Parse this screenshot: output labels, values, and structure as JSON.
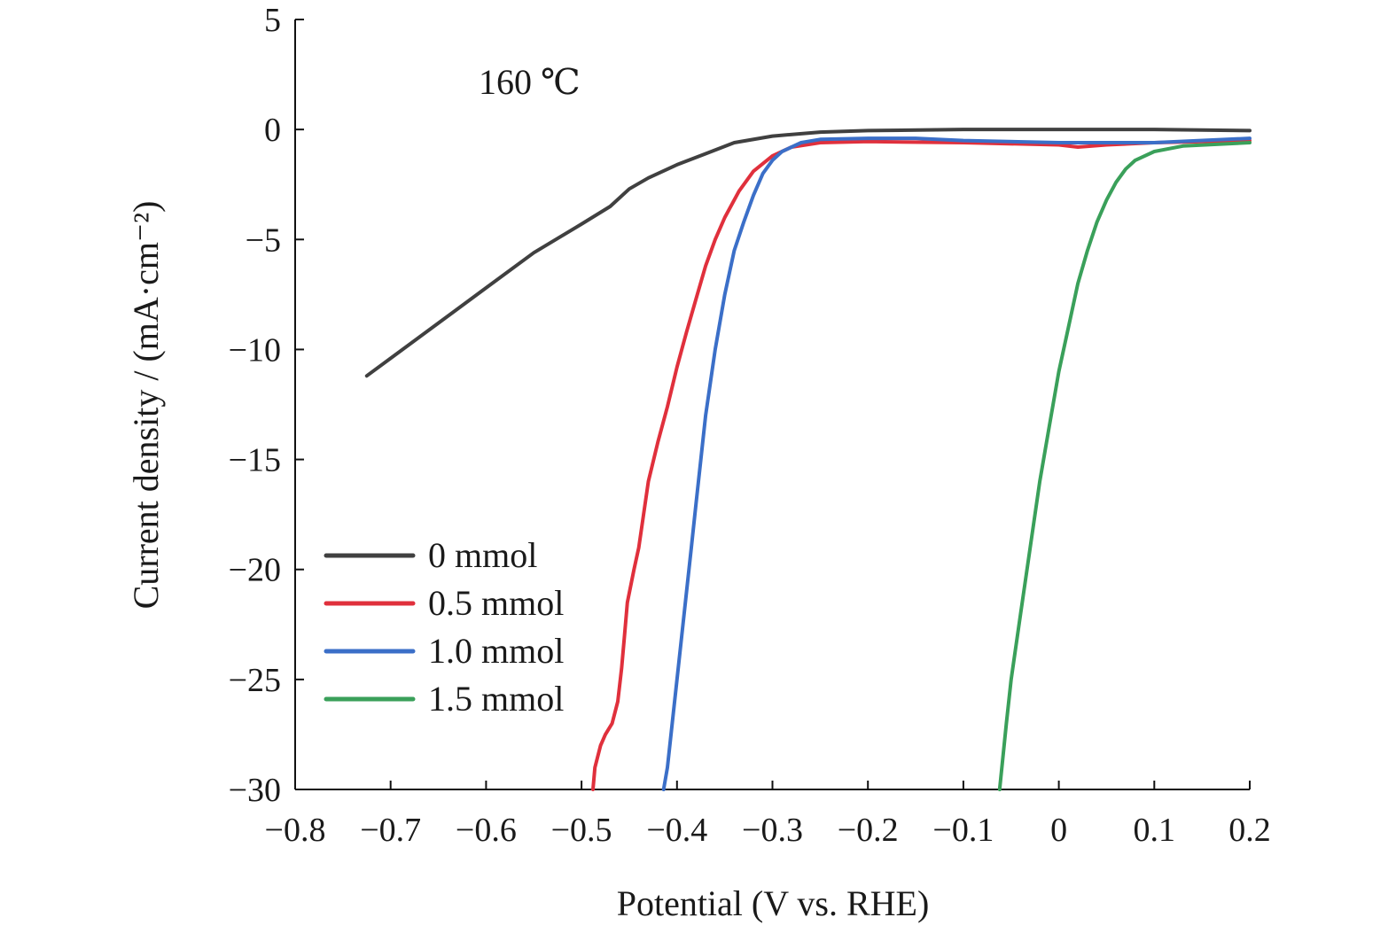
{
  "chart_data": {
    "type": "line",
    "title": "",
    "annotation": "160 ℃",
    "xlabel": "Potential (V vs. RHE)",
    "ylabel": "Current density / (mA·cm⁻²)",
    "xlim": [
      -0.8,
      0.2
    ],
    "ylim": [
      -30,
      5
    ],
    "xticks": [
      -0.8,
      -0.7,
      -0.6,
      -0.5,
      -0.4,
      -0.3,
      -0.2,
      -0.1,
      0,
      0.1,
      0.2
    ],
    "xtick_labels": [
      "−0.8",
      "−0.7",
      "−0.6",
      "−0.5",
      "−0.4",
      "−0.3",
      "−0.2",
      "−0.1",
      "0",
      "0.1",
      "0.2"
    ],
    "yticks": [
      5,
      0,
      -5,
      -10,
      -15,
      -20,
      -25,
      -30
    ],
    "ytick_labels": [
      "5",
      "0",
      "−5",
      "−10",
      "−15",
      "−20",
      "−25",
      "−30"
    ],
    "grid": false,
    "legend_position": "bottom-left",
    "series": [
      {
        "name": "0 mmol",
        "color": "#404040",
        "points": [
          [
            -0.725,
            -11.2
          ],
          [
            -0.7,
            -10.4
          ],
          [
            -0.65,
            -8.8
          ],
          [
            -0.6,
            -7.2
          ],
          [
            -0.55,
            -5.6
          ],
          [
            -0.5,
            -4.3
          ],
          [
            -0.47,
            -3.5
          ],
          [
            -0.45,
            -2.7
          ],
          [
            -0.43,
            -2.2
          ],
          [
            -0.4,
            -1.6
          ],
          [
            -0.37,
            -1.1
          ],
          [
            -0.34,
            -0.6
          ],
          [
            -0.3,
            -0.3
          ],
          [
            -0.25,
            -0.12
          ],
          [
            -0.2,
            -0.05
          ],
          [
            -0.1,
            0.0
          ],
          [
            0.0,
            0.0
          ],
          [
            0.1,
            0.0
          ],
          [
            0.2,
            -0.05
          ]
        ]
      },
      {
        "name": "0.5 mmol",
        "color": "#e0303c",
        "points": [
          [
            -0.488,
            -30.0
          ],
          [
            -0.486,
            -29.0
          ],
          [
            -0.48,
            -28.0
          ],
          [
            -0.475,
            -27.5
          ],
          [
            -0.468,
            -27.0
          ],
          [
            -0.462,
            -26.0
          ],
          [
            -0.458,
            -24.5
          ],
          [
            -0.455,
            -23.0
          ],
          [
            -0.452,
            -21.5
          ],
          [
            -0.445,
            -20.0
          ],
          [
            -0.44,
            -19.0
          ],
          [
            -0.435,
            -17.5
          ],
          [
            -0.43,
            -16.0
          ],
          [
            -0.42,
            -14.2
          ],
          [
            -0.41,
            -12.6
          ],
          [
            -0.4,
            -10.8
          ],
          [
            -0.39,
            -9.2
          ],
          [
            -0.38,
            -7.7
          ],
          [
            -0.37,
            -6.2
          ],
          [
            -0.36,
            -5.0
          ],
          [
            -0.35,
            -4.0
          ],
          [
            -0.335,
            -2.8
          ],
          [
            -0.32,
            -1.9
          ],
          [
            -0.3,
            -1.2
          ],
          [
            -0.28,
            -0.8
          ],
          [
            -0.25,
            -0.6
          ],
          [
            -0.2,
            -0.55
          ],
          [
            -0.1,
            -0.6
          ],
          [
            0.0,
            -0.7
          ],
          [
            0.02,
            -0.8
          ],
          [
            0.05,
            -0.7
          ],
          [
            0.1,
            -0.6
          ],
          [
            0.2,
            -0.5
          ]
        ]
      },
      {
        "name": "1.0 mmol",
        "color": "#3b6fc8",
        "points": [
          [
            -0.414,
            -30.0
          ],
          [
            -0.41,
            -29.0
          ],
          [
            -0.405,
            -27.0
          ],
          [
            -0.4,
            -25.0
          ],
          [
            -0.395,
            -23.0
          ],
          [
            -0.39,
            -21.0
          ],
          [
            -0.385,
            -19.0
          ],
          [
            -0.38,
            -17.0
          ],
          [
            -0.375,
            -15.0
          ],
          [
            -0.37,
            -13.0
          ],
          [
            -0.365,
            -11.5
          ],
          [
            -0.36,
            -10.0
          ],
          [
            -0.35,
            -7.5
          ],
          [
            -0.34,
            -5.5
          ],
          [
            -0.33,
            -4.2
          ],
          [
            -0.32,
            -3.0
          ],
          [
            -0.31,
            -2.0
          ],
          [
            -0.3,
            -1.4
          ],
          [
            -0.29,
            -1.0
          ],
          [
            -0.27,
            -0.6
          ],
          [
            -0.25,
            -0.45
          ],
          [
            -0.2,
            -0.4
          ],
          [
            -0.15,
            -0.4
          ],
          [
            -0.1,
            -0.5
          ],
          [
            0.0,
            -0.6
          ],
          [
            0.1,
            -0.6
          ],
          [
            0.2,
            -0.4
          ]
        ]
      },
      {
        "name": "1.5 mmol",
        "color": "#3aa05a",
        "points": [
          [
            -0.062,
            -30.0
          ],
          [
            -0.055,
            -27.0
          ],
          [
            -0.05,
            -25.0
          ],
          [
            -0.04,
            -22.0
          ],
          [
            -0.03,
            -19.0
          ],
          [
            -0.02,
            -16.0
          ],
          [
            -0.01,
            -13.5
          ],
          [
            0.0,
            -11.0
          ],
          [
            0.01,
            -9.0
          ],
          [
            0.02,
            -7.0
          ],
          [
            0.03,
            -5.5
          ],
          [
            0.04,
            -4.2
          ],
          [
            0.05,
            -3.2
          ],
          [
            0.06,
            -2.4
          ],
          [
            0.07,
            -1.8
          ],
          [
            0.08,
            -1.4
          ],
          [
            0.1,
            -1.0
          ],
          [
            0.13,
            -0.75
          ],
          [
            0.2,
            -0.6
          ]
        ]
      }
    ]
  }
}
